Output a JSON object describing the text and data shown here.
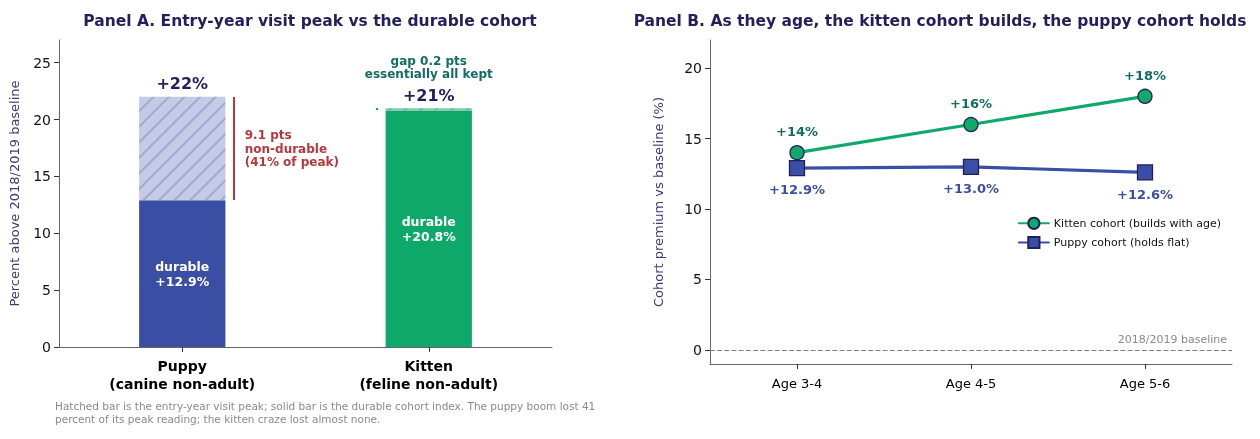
{
  "chart_data": [
    {
      "type": "bar",
      "title": "Panel A. Entry-year visit peak vs the durable cohort",
      "ylabel": "Percent above 2018/2019 baseline",
      "categories": [
        "Puppy\n(canine non-adult)",
        "Kitten\n(feline non-adult)"
      ],
      "stacked": true,
      "series": [
        {
          "colors": [
            "#3a4fa3",
            "#0fa86b"
          ],
          "values": [
            12.9,
            20.8
          ],
          "value_labels": [
            "durable\n+12.9%",
            "durable\n+20.8%"
          ]
        },
        {
          "colors": [
            "#c5cae6",
            "#7fd0ab"
          ],
          "values": [
            9.1,
            0.2
          ]
        }
      ],
      "totals": [
        "+22%",
        "+21%"
      ],
      "ylim": [
        0,
        27
      ],
      "yticks": [
        0,
        5,
        10,
        15,
        20,
        25
      ],
      "annotations": [
        "9.1 pts\nnon-durable\n(41% of peak)",
        "gap 0.2 pts\nessentially all kept",
        "Hatched bar is the entry-year visit peak; solid bar is the durable cohort index. The puppy boom lost 41 percent of its peak reading; the kitten craze lost almost none."
      ]
    },
    {
      "type": "line",
      "title": "Panel B. As they age, the kitten cohort builds, the puppy cohort holds",
      "ylabel": "Cohort premium vs baseline (%)",
      "categories": [
        "Age 3-4",
        "Age 4-5",
        "Age 5-6"
      ],
      "series": [
        {
          "name": "Kitten cohort (builds with age)",
          "color": "#11a86b",
          "marker": "circle",
          "values": [
            14,
            16,
            18
          ],
          "value_labels": [
            "+14%",
            "+16%",
            "+18%"
          ]
        },
        {
          "name": "Puppy cohort (holds flat)",
          "color": "#3a4fa3",
          "marker": "square",
          "values": [
            12.9,
            13.0,
            12.6
          ],
          "value_labels": [
            "+12.9%",
            "+13.0%",
            "+12.6%"
          ]
        }
      ],
      "ylim": [
        -1,
        22
      ],
      "yticks": [
        0,
        5,
        10,
        15,
        20
      ],
      "legend": "right",
      "ref_lines": [
        {
          "axis": "y",
          "value": 0,
          "label": "2018/2019 baseline",
          "color": "#808080",
          "line_style": "dashed"
        }
      ]
    }
  ]
}
